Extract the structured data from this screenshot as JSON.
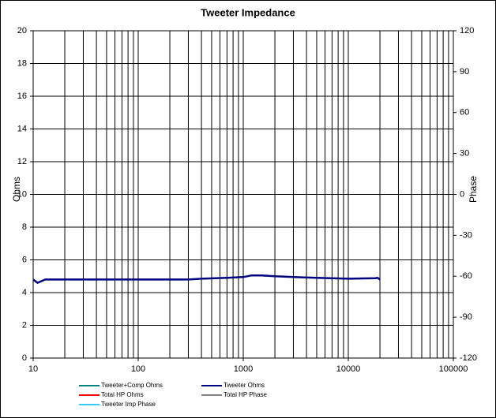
{
  "chart_data": {
    "type": "line",
    "title": "Tweeter  Impedance",
    "y_label": "Ohms",
    "y2_label": "Phase",
    "x_scale": "log",
    "xlim": [
      10,
      100000
    ],
    "xticks": [
      10,
      100,
      1000,
      10000,
      100000
    ],
    "minor_grid": true,
    "ylim": [
      0,
      20
    ],
    "yticks": [
      0,
      2,
      4,
      6,
      8,
      10,
      12,
      14,
      16,
      18,
      20
    ],
    "y2lim": [
      -120,
      120
    ],
    "y2ticks": [
      -120,
      -90,
      -60,
      -30,
      0,
      30,
      60,
      90,
      120
    ],
    "grid": true,
    "x": [
      10,
      11,
      12,
      13,
      20,
      100,
      300,
      400,
      700,
      1000,
      1200,
      1500,
      2000,
      3000,
      5000,
      10000,
      18000,
      19000,
      20000
    ],
    "series": [
      {
        "name": "Tweeter+Comp Ohms",
        "color": "#008080",
        "values": [
          null,
          null,
          null,
          null,
          null,
          null,
          null,
          null,
          null,
          null,
          null,
          null,
          null,
          null,
          null,
          null,
          null,
          null,
          null
        ]
      },
      {
        "name": "Tweeter Ohms",
        "color": "#000080",
        "values": [
          4.8,
          4.6,
          4.7,
          4.8,
          4.8,
          4.8,
          4.8,
          4.85,
          4.9,
          4.95,
          5.05,
          5.05,
          5.0,
          4.95,
          4.9,
          4.85,
          4.88,
          4.9,
          4.8
        ]
      },
      {
        "name": "Total HP Ohms",
        "color": "#ff0000",
        "values": [
          null,
          null,
          null,
          null,
          null,
          null,
          null,
          null,
          null,
          null,
          null,
          null,
          null,
          null,
          null,
          null,
          null,
          null,
          null
        ]
      },
      {
        "name": "Total HP Phase",
        "color": "#808080",
        "axis": "y2",
        "values": [
          null,
          null,
          null,
          null,
          null,
          null,
          null,
          null,
          null,
          null,
          null,
          null,
          null,
          null,
          null,
          null,
          null,
          null,
          null
        ]
      },
      {
        "name": "Tweeter Imp Phase",
        "color": "#33ccff",
        "axis": "y2",
        "values": [
          null,
          null,
          null,
          null,
          null,
          null,
          null,
          null,
          null,
          null,
          null,
          null,
          null,
          null,
          null,
          null,
          null,
          null,
          null
        ]
      }
    ]
  }
}
